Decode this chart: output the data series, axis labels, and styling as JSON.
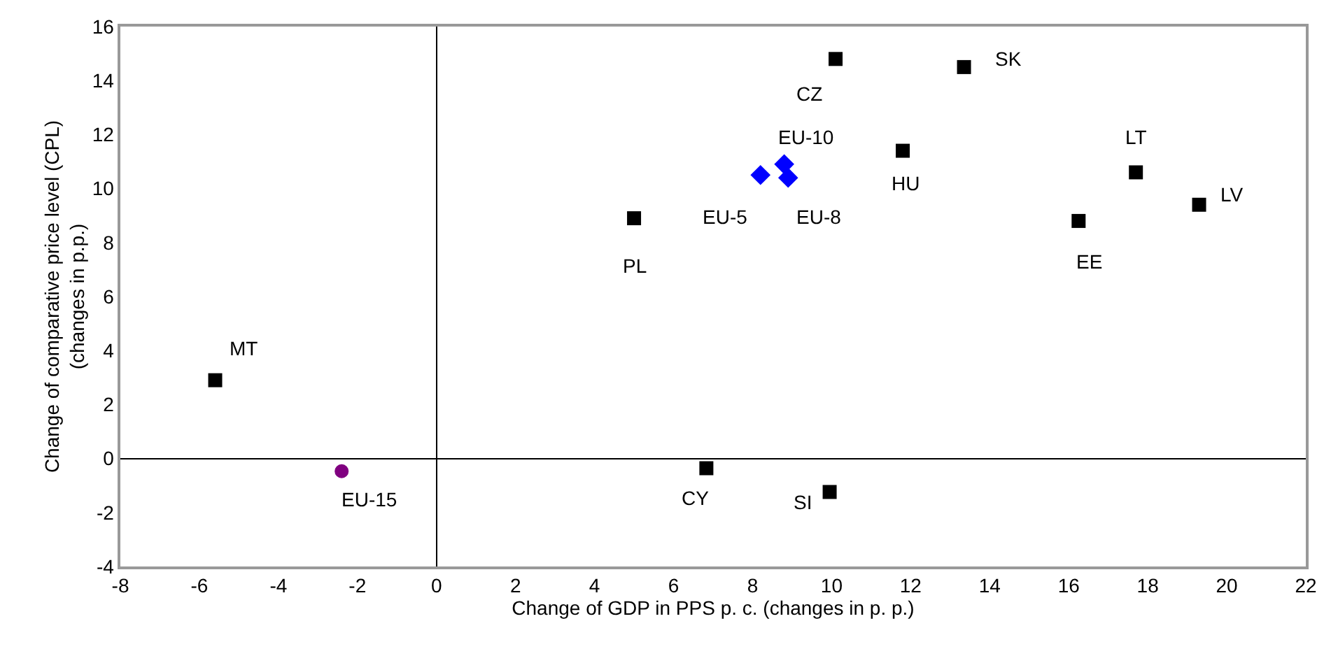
{
  "chart_data": {
    "type": "scatter",
    "xlabel": "Change of GDP in PPS p. c. (changes in p. p.)",
    "ylabel": "Change of comparative price level (CPL)\n(changes in p.p.)",
    "xlim": [
      -8,
      22
    ],
    "xticks": [
      -8,
      -6,
      -4,
      -2,
      0,
      2,
      4,
      6,
      8,
      10,
      12,
      14,
      16,
      18,
      20,
      22
    ],
    "ylim": [
      -4,
      16
    ],
    "yticks": [
      -4,
      -2,
      0,
      2,
      4,
      6,
      8,
      10,
      12,
      14,
      16
    ],
    "series": [
      {
        "color": "#000000",
        "marker": "square",
        "x": [
          -5.6,
          6.83,
          9.95,
          10.1,
          13.35,
          11.8,
          5.0,
          17.7,
          19.3,
          16.25
        ],
        "values": [
          2.9,
          -0.36,
          -1.24,
          14.8,
          14.5,
          11.4,
          8.9,
          10.6,
          9.4,
          8.8
        ]
      },
      {
        "color": "#0000ff",
        "marker": "diamond",
        "x": [
          8.2,
          8.8,
          8.9
        ],
        "values": [
          10.5,
          10.9,
          10.4
        ]
      },
      {
        "color": "#800080",
        "marker": "circle",
        "x": [
          -2.4
        ],
        "values": [
          -0.47
        ]
      }
    ],
    "annotations": [
      {
        "text": "MT",
        "x": -5.6,
        "y": 2.9
      },
      {
        "text": "CY",
        "x": 6.83,
        "y": -0.36
      },
      {
        "text": "SI",
        "x": 9.95,
        "y": -1.24
      },
      {
        "text": "CZ",
        "x": 10.1,
        "y": 14.8
      },
      {
        "text": "SK",
        "x": 13.35,
        "y": 14.5
      },
      {
        "text": "HU",
        "x": 11.8,
        "y": 11.4
      },
      {
        "text": "PL",
        "x": 5.0,
        "y": 8.9
      },
      {
        "text": "LT",
        "x": 17.7,
        "y": 10.6
      },
      {
        "text": "LV",
        "x": 19.3,
        "y": 9.4
      },
      {
        "text": "EE",
        "x": 16.25,
        "y": 8.8
      },
      {
        "text": "EU-5",
        "x": 8.2,
        "y": 10.5
      },
      {
        "text": "EU-10",
        "x": 8.8,
        "y": 10.9
      },
      {
        "text": "EU-8",
        "x": 8.9,
        "y": 10.4
      },
      {
        "text": "EU-15",
        "x": -2.4,
        "y": -0.47
      }
    ]
  }
}
